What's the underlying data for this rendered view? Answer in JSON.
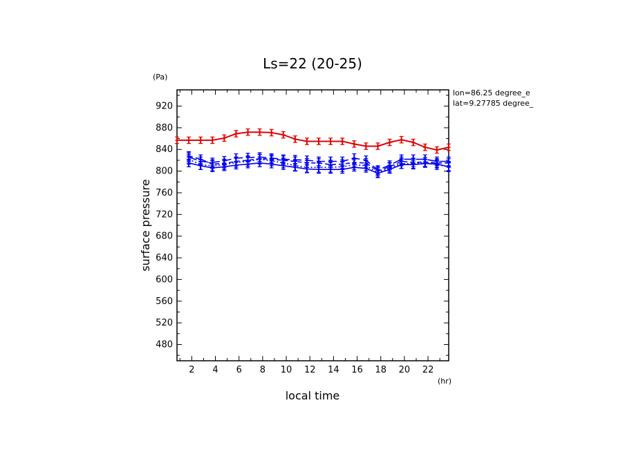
{
  "chart_data": {
    "type": "line",
    "title": "Ls=22 (20-25)",
    "xlabel": "local time",
    "ylabel": "surface pressure",
    "x_unit": "(hr)",
    "y_unit": "(Pa)",
    "xlim": [
      0.75,
      23.75
    ],
    "ylim": [
      450,
      950
    ],
    "xticks": [
      2,
      4,
      6,
      8,
      10,
      12,
      14,
      16,
      18,
      20,
      22
    ],
    "yticks": [
      480,
      520,
      560,
      600,
      640,
      680,
      720,
      760,
      800,
      840,
      880,
      920
    ],
    "annotations": [
      "lon=86.25 degree_e",
      "lat=9.27785 degree_"
    ],
    "x": [
      0.75,
      1.75,
      2.75,
      3.75,
      4.75,
      5.75,
      6.75,
      7.75,
      8.75,
      9.75,
      10.75,
      11.75,
      12.75,
      13.75,
      14.75,
      15.75,
      16.75,
      17.75,
      18.75,
      19.75,
      20.75,
      21.75,
      22.75,
      23.75
    ],
    "series": [
      {
        "color": "#e00000",
        "style": "solid",
        "err": 6,
        "values": [
          857,
          857,
          857,
          857,
          861,
          869,
          872,
          872,
          871,
          867,
          859,
          855,
          855,
          855,
          855,
          850,
          846,
          846,
          853,
          858,
          853,
          844,
          839,
          844
        ]
      },
      {
        "color": "#0000ee",
        "style": "solid",
        "err": 7,
        "values": [
          null,
          815,
          810,
          806,
          808,
          811,
          813,
          815,
          813,
          810,
          807,
          804,
          803,
          803,
          803,
          807,
          805,
          796,
          803,
          812,
          812,
          814,
          813,
          808
        ]
      },
      {
        "color": "#0000ee",
        "style": "dashed",
        "err": 8,
        "values": [
          null,
          828,
          822,
          813,
          814,
          818,
          820,
          823,
          822,
          820,
          818,
          815,
          815,
          812,
          813,
          816,
          815,
          800,
          808,
          818,
          816,
          817,
          815,
          815
        ]
      },
      {
        "color": "#0000ee",
        "style": "longdash",
        "err": 8,
        "values": [
          null,
          826,
          818,
          816,
          819,
          824,
          825,
          826,
          824,
          822,
          821,
          820,
          818,
          818,
          818,
          824,
          820,
          802,
          811,
          822,
          822,
          822,
          818,
          818
        ]
      },
      {
        "color": "#0000ee",
        "style": "dotted",
        "err": 9,
        "values": [
          null,
          822,
          812,
          810,
          812,
          816,
          818,
          822,
          819,
          815,
          810,
          807,
          807,
          807,
          808,
          812,
          810,
          797,
          806,
          814,
          813,
          816,
          812,
          808
        ]
      }
    ]
  }
}
